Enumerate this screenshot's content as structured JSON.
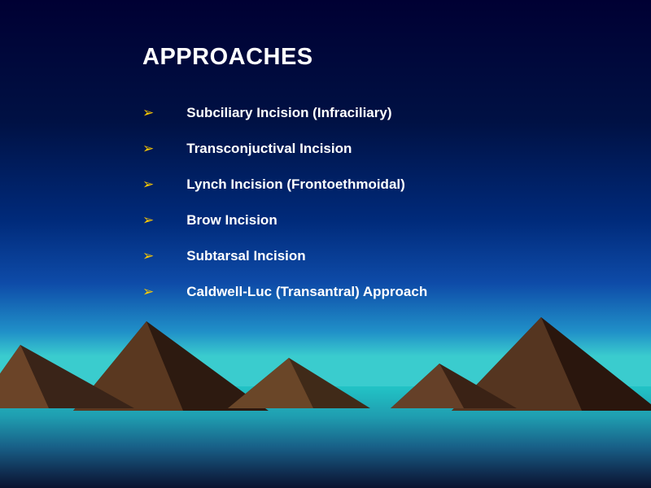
{
  "slide": {
    "title": "APPROACHES",
    "title_color": "#ffffff",
    "title_fontsize": 29,
    "bullet_color": "#ffcc00",
    "item_color": "#ffffff",
    "item_fontsize": 17,
    "items": [
      "Subciliary Incision (Infraciliary)",
      "Transconjuctival Incision",
      "Lynch Incision (Frontoethmoidal)",
      "Brow Incision",
      "Subtarsal Incision",
      "Caldwell-Luc (Transantral) Approach"
    ]
  },
  "background": {
    "sky_gradient": [
      "#000033",
      "#001144",
      "#002a7a",
      "#0e4ba8",
      "#2090c8",
      "#3accce"
    ],
    "water_gradient": [
      "#22c4c6",
      "#1f9db0",
      "#185f87",
      "#102d50",
      "#0a1430"
    ],
    "mountain_dark": "#2d1a10",
    "mountain_light": "#6b4428"
  }
}
